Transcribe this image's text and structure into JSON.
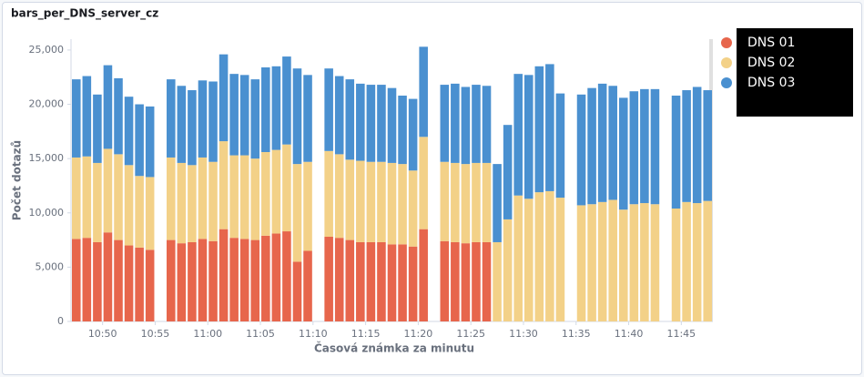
{
  "chart_data": {
    "type": "stacked-bar",
    "title": "bars_per_DNS_server_cz",
    "y_label": "Počet dotazů",
    "x_label": "Časová známka za minutu",
    "categories": [
      null,
      null,
      null,
      "10:50",
      null,
      null,
      null,
      null,
      "10:55",
      null,
      null,
      null,
      null,
      "11:00",
      null,
      null,
      null,
      null,
      "11:05",
      null,
      null,
      null,
      null,
      "11:10",
      null,
      null,
      null,
      null,
      "11:15",
      null,
      null,
      null,
      null,
      "11:20",
      null,
      null,
      null,
      null,
      "11:25",
      null,
      null,
      null,
      null,
      "11:30",
      null,
      null,
      null,
      null,
      "11:35",
      null,
      null,
      null,
      null,
      "11:40",
      null,
      null,
      null,
      null,
      "11:45",
      null,
      null
    ],
    "series": [
      {
        "name": "DNS 01",
        "color": "#e7664c",
        "values": [
          7600,
          7700,
          7300,
          8200,
          7500,
          7000,
          6800,
          6600,
          null,
          7500,
          7200,
          7300,
          7600,
          7400,
          8500,
          7700,
          7600,
          7500,
          7900,
          8100,
          8300,
          5500,
          6500,
          null,
          7800,
          7700,
          7500,
          7300,
          7300,
          7300,
          7100,
          7100,
          6900,
          8500,
          null,
          7400,
          7300,
          7200,
          7300,
          7300,
          null,
          null,
          null,
          null,
          null,
          null,
          null,
          null,
          null,
          null,
          null,
          null,
          null,
          null,
          null,
          null,
          null,
          null,
          null,
          null,
          null
        ]
      },
      {
        "name": "DNS 02",
        "color": "#f3d188",
        "values": [
          7500,
          7500,
          7300,
          7700,
          7900,
          7400,
          6600,
          6700,
          null,
          7600,
          7400,
          7100,
          7500,
          7300,
          8100,
          7600,
          7700,
          7500,
          7700,
          7700,
          8000,
          9000,
          8200,
          null,
          7900,
          7700,
          7400,
          7500,
          7400,
          7400,
          7500,
          7400,
          7000,
          8500,
          null,
          7300,
          7300,
          7300,
          7300,
          7300,
          7300,
          9400,
          11600,
          11300,
          11900,
          12000,
          11400,
          null,
          10700,
          10800,
          11000,
          11200,
          10300,
          10800,
          10900,
          10800,
          null,
          10400,
          11000,
          10900,
          11100
        ]
      },
      {
        "name": "DNS 03",
        "color": "#4a90d0",
        "values": [
          7200,
          7400,
          6300,
          7700,
          7000,
          6300,
          6600,
          6500,
          null,
          7200,
          7100,
          6900,
          7100,
          7400,
          8000,
          7500,
          7400,
          7300,
          7800,
          7700,
          8100,
          8800,
          8000,
          null,
          7600,
          7200,
          7400,
          7100,
          7100,
          7100,
          6900,
          6300,
          6600,
          8300,
          null,
          7100,
          7300,
          7100,
          7200,
          7100,
          7200,
          8700,
          11200,
          11400,
          11600,
          11700,
          9600,
          null,
          10200,
          10700,
          10900,
          10500,
          10300,
          10400,
          10500,
          10600,
          null,
          10400,
          10300,
          10700,
          10200
        ]
      }
    ],
    "ylim": [
      0,
      26000
    ],
    "yticks": [
      0,
      {
        "value": 5000,
        "label": "5,000"
      },
      {
        "value": 10000,
        "label": "10,000"
      },
      {
        "value": 15000,
        "label": "15,000"
      },
      {
        "value": 20000,
        "label": "20,000"
      },
      {
        "value": 25000,
        "label": "25,000"
      }
    ],
    "legend": "right",
    "grid": false
  }
}
